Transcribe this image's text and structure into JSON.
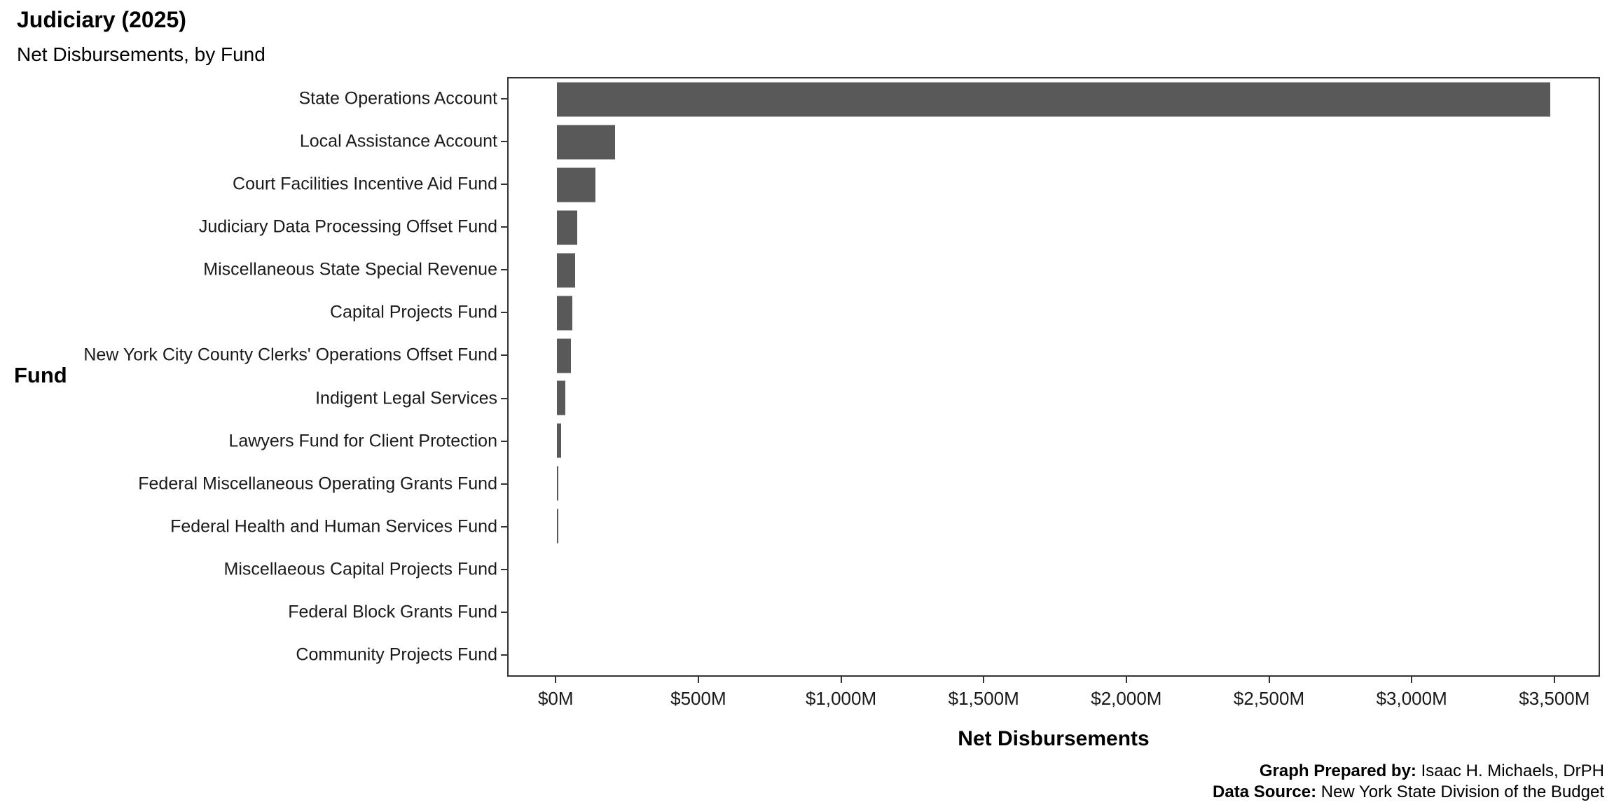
{
  "header": {
    "title": "Judiciary (2025)",
    "subtitle": "Net Disbursements, by Fund"
  },
  "chart_data": {
    "type": "bar",
    "orientation": "horizontal",
    "title": "Judiciary (2025)",
    "subtitle": "Net Disbursements, by Fund",
    "xlabel": "Net Disbursements",
    "ylabel": "Fund",
    "categories": [
      "State Operations Account",
      "Local Assistance Account",
      "Court Facilities Incentive Aid Fund",
      "Judiciary Data Processing Offset Fund",
      "Miscellaneous State Special Revenue",
      "Capital Projects Fund",
      "New York City County Clerks' Operations Offset Fund",
      "Indigent Legal Services",
      "Lawyers Fund for Client Protection",
      "Federal Miscellaneous Operating Grants Fund",
      "Federal Health and Human Services Fund",
      "Miscellaeous Capital Projects Fund",
      "Federal Block Grants Fund",
      "Community Projects Fund"
    ],
    "values": [
      3490,
      205,
      135,
      70,
      65,
      55,
      50,
      30,
      15,
      5,
      5,
      0,
      0,
      0
    ],
    "value_unit": "USD millions",
    "xlim": [
      -170,
      3660
    ],
    "xticks": [
      0,
      500,
      1000,
      1500,
      2000,
      2500,
      3000,
      3500
    ],
    "xtick_labels": [
      "$0M",
      "$500M",
      "$1,000M",
      "$1,500M",
      "$2,000M",
      "$2,500M",
      "$3,000M",
      "$3,500M"
    ],
    "bar_color": "#595959",
    "grid": false,
    "legend": "none"
  },
  "footer": {
    "prepared_by_label": "Graph Prepared by: ",
    "prepared_by": "Isaac H. Michaels, DrPH",
    "source_label": "Data Source: ",
    "source": "New York State Division of the Budget"
  }
}
